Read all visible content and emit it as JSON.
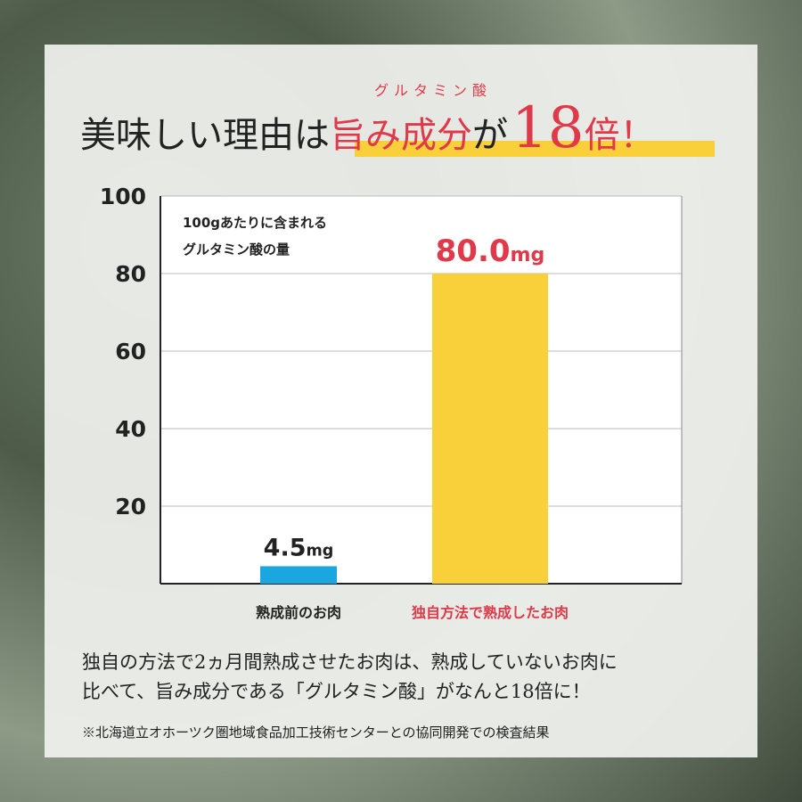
{
  "chart_data": {
    "type": "bar",
    "title": {
      "lead": "美味しい理由は",
      "highlight": "旨み成分",
      "ruby": "グルタミン酸",
      "particle": "が",
      "number": "18",
      "suffix": "倍！"
    },
    "annotation": [
      "100gあたりに含まれる",
      "グルタミン酸の量"
    ],
    "categories": [
      "熟成前のお肉",
      "独自方法で熟成したお肉"
    ],
    "values": [
      4.5,
      80.0
    ],
    "value_labels": [
      "4.5mg",
      "80.0mg"
    ],
    "colors": [
      "#1aa6de",
      "#f9cf3a"
    ],
    "label_colors": [
      "#222222",
      "#e0394a"
    ],
    "ylim": [
      0,
      100
    ],
    "yticks": [
      20,
      40,
      60,
      80,
      100
    ],
    "grid": true
  },
  "text": {
    "body": [
      "独自の方法で2ヵ月間熟成させたお肉は、熟成していないお肉に",
      "比べて、旨み成分である「グルタミン酸」がなんと18倍に！"
    ],
    "note": "※北海道立オホーツク圏地域食品加工技術センターとの協同開発での検査結果"
  }
}
